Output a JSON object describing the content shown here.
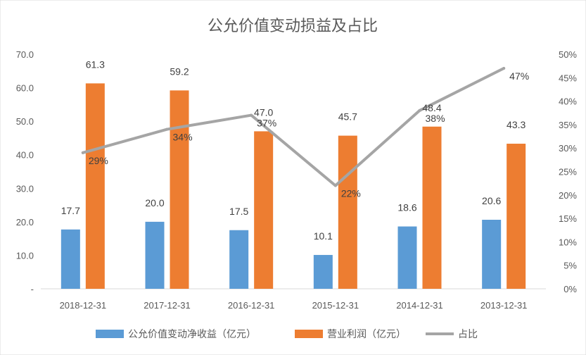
{
  "chart_data": {
    "type": "bar",
    "title": "公允价值变动损益及占比",
    "categories": [
      "2018-12-31",
      "2017-12-31",
      "2016-12-31",
      "2015-12-31",
      "2014-12-31",
      "2013-12-31"
    ],
    "series": [
      {
        "name": "公允价值变动净收益（亿元）",
        "type": "bar",
        "axis": "left",
        "color": "#5B9BD5",
        "values": [
          17.7,
          20.0,
          17.5,
          10.1,
          18.6,
          20.6
        ],
        "labels": [
          "17.7",
          "20.0",
          "17.5",
          "10.1",
          "18.6",
          "20.6"
        ]
      },
      {
        "name": "营业利润（亿元）",
        "type": "bar",
        "axis": "left",
        "color": "#ED7D31",
        "values": [
          61.3,
          59.2,
          47.0,
          45.7,
          48.4,
          43.3
        ],
        "labels": [
          "61.3",
          "59.2",
          "47.0",
          "45.7",
          "48.4",
          "43.3"
        ]
      },
      {
        "name": "占比",
        "type": "line",
        "axis": "right",
        "color": "#A5A5A5",
        "values": [
          0.29,
          0.34,
          0.37,
          0.22,
          0.38,
          0.47
        ],
        "labels": [
          "29%",
          "34%",
          "37%",
          "22%",
          "38%",
          "47%"
        ]
      }
    ],
    "y_left": {
      "lim": [
        0,
        70
      ],
      "ticks": [
        "-",
        "10.0",
        "20.0",
        "30.0",
        "40.0",
        "50.0",
        "60.0",
        "70.0"
      ]
    },
    "y_right": {
      "lim": [
        0,
        0.5
      ],
      "ticks": [
        "0%",
        "5%",
        "10%",
        "15%",
        "20%",
        "25%",
        "30%",
        "35%",
        "40%",
        "45%",
        "50%"
      ]
    },
    "grid": false,
    "legend_position": "bottom"
  }
}
